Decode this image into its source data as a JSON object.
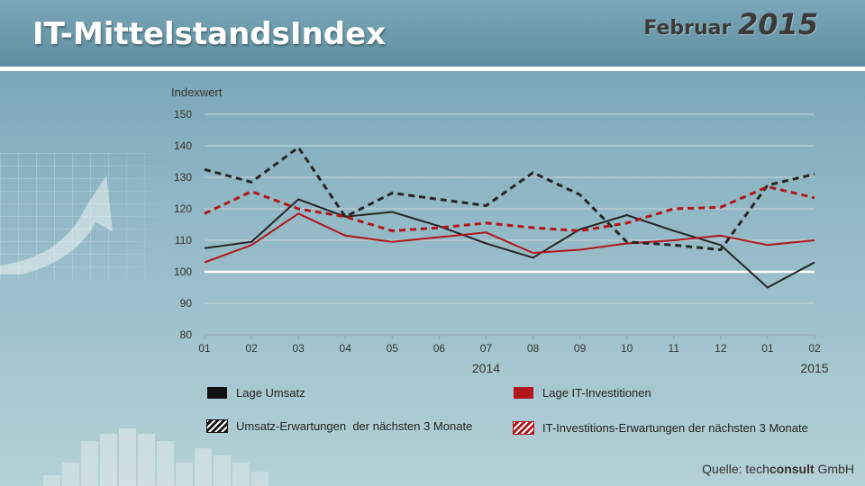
{
  "header": {
    "title": "IT-MittelstandsIndex",
    "date_month": "Februar",
    "date_year": "2015"
  },
  "source": {
    "prefix": "Quelle:",
    "brand_light": "tech",
    "brand_bold": "consult",
    "suffix": "GmbH"
  },
  "legend": [
    {
      "label": "Lage Umsatz",
      "swatch": "solid-black"
    },
    {
      "label": "Lage IT-Investitionen",
      "swatch": "solid-red"
    },
    {
      "label": "Umsatz-Erwartungen  der nächsten 3 Monate",
      "swatch": "hatch-black"
    },
    {
      "label": "IT-Investitions-Erwartungen der nächsten 3 Monate",
      "swatch": "hatch-red"
    }
  ],
  "colors": {
    "black_series": "#262626",
    "red_series": "#b0161b",
    "gridline": "#c9d6da",
    "baseline": "#ffffff"
  },
  "chart_data": {
    "type": "line",
    "ylabel": "Indexwert",
    "ylim": [
      80,
      150
    ],
    "yticks": [
      80,
      90,
      100,
      110,
      120,
      130,
      140,
      150
    ],
    "baseline": 100,
    "categories": [
      "01",
      "02",
      "03",
      "04",
      "05",
      "06",
      "07",
      "08",
      "09",
      "10",
      "11",
      "12",
      "01",
      "02"
    ],
    "year_labels": [
      {
        "label": "2014",
        "at_index": 6
      },
      {
        "label": "2015",
        "at_index": 13
      }
    ],
    "grid": true,
    "legend_position": "bottom",
    "series": [
      {
        "name": "Lage Umsatz",
        "color": "#262626",
        "style": "solid",
        "values": [
          107.5,
          109.5,
          123,
          117.5,
          119,
          114.5,
          109,
          104.5,
          113.5,
          118,
          113,
          108.5,
          95,
          103
        ]
      },
      {
        "name": "Lage IT-Investitionen",
        "color": "#b0161b",
        "style": "solid",
        "values": [
          103,
          108.5,
          118.5,
          111.5,
          109.5,
          111,
          112.5,
          106,
          107,
          109,
          110,
          111.5,
          108.5,
          110
        ]
      },
      {
        "name": "Umsatz-Erwartungen  der nächsten 3 Monate",
        "color": "#262626",
        "style": "dashed",
        "values": [
          132.5,
          128.5,
          139.5,
          117.5,
          125,
          123,
          121,
          131.5,
          124.5,
          109.5,
          108.5,
          107,
          127.5,
          131
        ]
      },
      {
        "name": "IT-Investitions-Erwartungen der nächsten 3 Monate",
        "color": "#b0161b",
        "style": "dashed",
        "values": [
          118.5,
          125.5,
          120,
          117.5,
          113,
          114,
          115.5,
          114,
          113,
          115.5,
          120,
          120.5,
          127,
          123.5
        ]
      }
    ]
  }
}
